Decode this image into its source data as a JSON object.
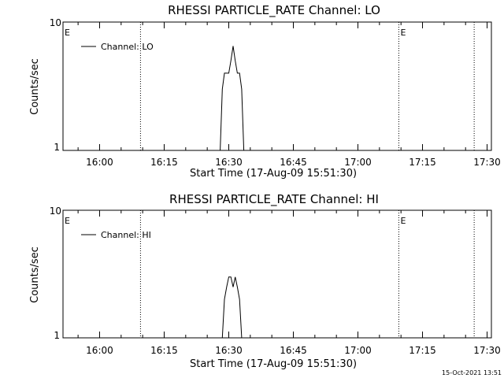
{
  "chart_data": [
    {
      "type": "line",
      "title": "RHESSI PARTICLE_RATE Channel: LO",
      "xlabel": "Start Time (17-Aug-09 15:51:30)",
      "ylabel": "Counts/sec",
      "y_scale": "log",
      "ylim": [
        1,
        10
      ],
      "yticks": [
        "1",
        "10"
      ],
      "xticks": [
        "16:00",
        "16:15",
        "16:30",
        "16:45",
        "17:00",
        "17:15",
        "17:30"
      ],
      "xlim": [
        "15:51:30",
        "17:31:00"
      ],
      "grid": false,
      "legend_position": "top-left",
      "series": [
        {
          "name": "Channel: LO",
          "x": [
            "16:27:30",
            "16:28:00",
            "16:28:30",
            "16:29:00",
            "16:29:30",
            "16:30:00",
            "16:30:30",
            "16:31:00",
            "16:31:30",
            "16:32:00",
            "16:32:30",
            "16:33:00",
            "16:33:30",
            "16:34:00"
          ],
          "values": [
            1,
            1,
            3,
            4,
            4,
            4,
            5,
            6.5,
            5,
            4,
            4,
            3,
            1,
            1
          ]
        }
      ],
      "event_lines": [
        "16:09:30",
        "17:09:30",
        "17:27:00"
      ],
      "event_marks": [
        {
          "label": "E",
          "at": "15:51:30"
        },
        {
          "label": "E",
          "at": "17:09:30"
        }
      ]
    },
    {
      "type": "line",
      "title": "RHESSI PARTICLE_RATE Channel: HI",
      "xlabel": "Start Time (17-Aug-09 15:51:30)",
      "ylabel": "Counts/sec",
      "y_scale": "log",
      "ylim": [
        1,
        10
      ],
      "yticks": [
        "1",
        "10"
      ],
      "xticks": [
        "16:00",
        "16:15",
        "16:30",
        "16:45",
        "17:00",
        "17:15",
        "17:30"
      ],
      "xlim": [
        "15:51:30",
        "17:31:00"
      ],
      "grid": false,
      "legend_position": "top-left",
      "series": [
        {
          "name": "Channel: HI",
          "x": [
            "16:28:30",
            "16:29:00",
            "16:29:30",
            "16:30:00",
            "16:30:30",
            "16:31:00",
            "16:31:30",
            "16:32:00",
            "16:32:30",
            "16:33:00",
            "16:33:30"
          ],
          "values": [
            1,
            2,
            2.5,
            3,
            3,
            2.5,
            3,
            2.5,
            2,
            1,
            1
          ]
        }
      ],
      "event_lines": [
        "16:09:30",
        "17:09:30",
        "17:27:00"
      ],
      "event_marks": [
        {
          "label": "E",
          "at": "15:51:30"
        },
        {
          "label": "E",
          "at": "17:09:30"
        }
      ]
    }
  ],
  "footer": {
    "timestamp": "15-Oct-2021 13:51"
  }
}
